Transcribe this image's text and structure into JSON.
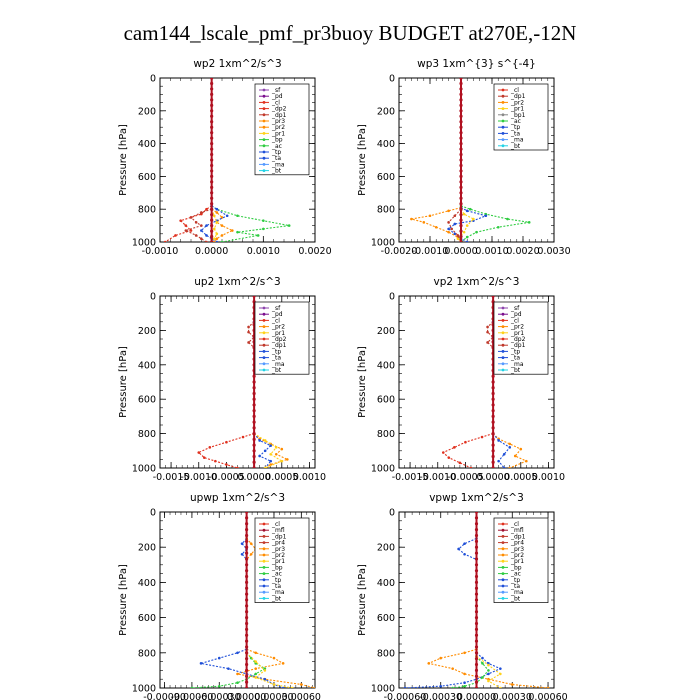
{
  "figure_title": "cam144_lscale_pmf_pr3buoy  BUDGET at270E,-12N",
  "colors": {
    "_sf": "#8e44ad",
    "_pd": "#7b0f8e",
    "_cl": "#e0301e",
    "_dp2": "#e0301e",
    "_dp1": "#c0392b",
    "_pr3": "#ff8c00",
    "_pr2": "#ff8c00",
    "_pr1": "#ffd21a",
    "_bp": "#2ecc40",
    "_ac": "#2ecc40",
    "_tp": "#1f4fd8",
    "_ta": "#1f4fd8",
    "_ma": "#5599ff",
    "_bt": "#22d3e6",
    "_mfl": "#a01030",
    "_pr4": "#c0392b",
    "profile": "#b01020"
  },
  "chart_data": [
    {
      "type": "line",
      "title": "wp2   1xm^2/s^3",
      "ylabel": "Pressure [hPa]",
      "xlim": [
        -0.001,
        0.002
      ],
      "xticks": [
        -0.001,
        0.0,
        0.001,
        0.002
      ],
      "xtick_labels": [
        "-0.0010",
        "0.0000",
        "0.0010",
        "0.0020"
      ],
      "ylim": [
        1000,
        0
      ],
      "yticks": [
        0,
        200,
        400,
        600,
        800,
        1000
      ],
      "ytick_labels": [
        "0",
        "200",
        "400",
        "600",
        "800",
        "1000"
      ],
      "legend": [
        "_sf",
        "_pd",
        "_cl",
        "_dp2",
        "_dp1",
        "_pr3",
        "_pr2",
        "_pr1",
        "_bp",
        "_ac",
        "_tp",
        "_ta",
        "_ma",
        "_bt"
      ],
      "legend_placement": "top-right",
      "series": [
        {
          "name": "_bp",
          "x": [
            0,
            0.0001,
            0.0005,
            0.001,
            0.0015,
            0.001,
            0.0005,
            0.0009,
            0.0002
          ],
          "y": [
            780,
            800,
            840,
            870,
            900,
            920,
            940,
            960,
            1000
          ]
        },
        {
          "name": "_cl",
          "x": [
            0,
            -0.0001,
            -0.0002,
            -0.0004,
            -0.0006,
            -0.0005,
            -0.0004,
            -0.0007,
            -0.0009
          ],
          "y": [
            780,
            800,
            830,
            850,
            870,
            900,
            930,
            960,
            1000
          ]
        },
        {
          "name": "_pr3",
          "x": [
            0,
            0.0001,
            0.0002,
            0.0001,
            0.0002,
            0.0004,
            0.0002,
            0.0001,
            5e-05
          ],
          "y": [
            800,
            820,
            850,
            880,
            900,
            930,
            960,
            980,
            1000
          ]
        },
        {
          "name": "_tp",
          "x": [
            0,
            0.0001,
            0.0003,
            0.0001,
            -0.0001,
            -0.0002,
            -0.0001,
            0,
            0.0001
          ],
          "y": [
            780,
            800,
            840,
            870,
            900,
            930,
            960,
            980,
            1000
          ]
        },
        {
          "name": "_dp1",
          "x": [
            0,
            -0.0002,
            -0.0004,
            -0.0003,
            -0.0002,
            -0.0005,
            -0.0003,
            -0.0002,
            -0.0001
          ],
          "y": [
            800,
            820,
            850,
            880,
            900,
            930,
            960,
            980,
            1000
          ]
        },
        {
          "name": "_pr1",
          "x": [
            0,
            5e-05,
            0.0001,
            5e-05,
            0.0001,
            5e-05,
            0
          ],
          "y": [
            800,
            840,
            880,
            920,
            950,
            980,
            1000
          ]
        }
      ]
    },
    {
      "type": "line",
      "title": "wp3   1xm^{3} s^{-4}",
      "ylabel": "Pressure [hPa]",
      "xlim": [
        -0.002,
        0.003
      ],
      "xticks": [
        -0.002,
        -0.001,
        0.0,
        0.001,
        0.002,
        0.003
      ],
      "xtick_labels": [
        "-0.0020",
        "-0.0010",
        "0.0000",
        "0.0010",
        "0.0020",
        "0.0030"
      ],
      "ylim": [
        1000,
        0
      ],
      "yticks": [
        0,
        200,
        400,
        600,
        800,
        1000
      ],
      "ytick_labels": [
        "0",
        "200",
        "400",
        "600",
        "800",
        "1000"
      ],
      "legend": [
        "_cl",
        "_dp1",
        "_pr2",
        "_pr1",
        "_bp1",
        "_ac",
        "_tp",
        "_ta",
        "_ma",
        "_bt"
      ],
      "legend_placement": "top-right",
      "series": [
        {
          "name": "_ac",
          "x": [
            0,
            0.0003,
            0.0008,
            0.0015,
            0.0022,
            0.0012,
            0.0005,
            0.0002,
            0
          ],
          "y": [
            780,
            800,
            830,
            860,
            880,
            910,
            940,
            970,
            1000
          ]
        },
        {
          "name": "_pr2",
          "x": [
            0,
            -0.0004,
            -0.001,
            -0.0016,
            -0.0012,
            -0.0008,
            -0.0004,
            -0.0001,
            0
          ],
          "y": [
            790,
            810,
            840,
            860,
            880,
            910,
            940,
            970,
            1000
          ]
        },
        {
          "name": "_tp",
          "x": [
            0,
            0.0002,
            0.0008,
            0.0004,
            -0.0002,
            -0.0004,
            -0.0002,
            0,
            0.0002
          ],
          "y": [
            790,
            810,
            840,
            870,
            890,
            920,
            950,
            980,
            1000
          ]
        },
        {
          "name": "_pr1",
          "x": [
            0,
            0.0001,
            0.0004,
            0.0002,
            0.0001,
            -0.0001,
            0
          ],
          "y": [
            800,
            830,
            860,
            900,
            940,
            980,
            1000
          ]
        },
        {
          "name": "_dp1",
          "x": [
            0,
            -0.0002,
            -0.0004,
            -0.0003,
            -0.0001,
            0
          ],
          "y": [
            800,
            840,
            880,
            920,
            960,
            1000
          ]
        }
      ]
    },
    {
      "type": "line",
      "title": "up2   1xm^2/s^3",
      "ylabel": "Pressure [hPa]",
      "xlim": [
        -0.0017,
        0.0011
      ],
      "xticks": [
        -0.0015,
        -0.001,
        -0.0005,
        0.0,
        0.0005,
        0.001
      ],
      "xtick_labels": [
        "-0.0015",
        "-0.0010",
        "-0.0005",
        "0.0000",
        "0.0005",
        "0.0010"
      ],
      "ylim": [
        1000,
        0
      ],
      "yticks": [
        0,
        200,
        400,
        600,
        800,
        1000
      ],
      "ytick_labels": [
        "0",
        "200",
        "400",
        "600",
        "800",
        "1000"
      ],
      "legend": [
        "_sf",
        "_pd",
        "_cl",
        "_pr2",
        "_pr1",
        "_dp2",
        "_dp1",
        "_tp",
        "_ta",
        "_ma",
        "_bt"
      ],
      "legend_placement": "top-right",
      "series": [
        {
          "name": "_dp2",
          "x": [
            0,
            -0.0002,
            -0.0005,
            -0.0008,
            -0.001,
            -0.0009,
            -0.0007,
            -0.0005,
            -0.0003
          ],
          "y": [
            800,
            820,
            850,
            880,
            910,
            940,
            960,
            980,
            1000
          ]
        },
        {
          "name": "_pr2",
          "x": [
            0,
            0.0001,
            0.0003,
            0.0005,
            0.0004,
            0.0006,
            0.0003,
            0.0002
          ],
          "y": [
            800,
            830,
            860,
            890,
            920,
            950,
            980,
            1000
          ]
        },
        {
          "name": "_tp",
          "x": [
            0,
            0.0001,
            0.0003,
            0.0002,
            0.0001,
            0.0003,
            0.0002
          ],
          "y": [
            800,
            840,
            870,
            900,
            930,
            960,
            1000
          ]
        },
        {
          "name": "_dp1",
          "x": [
            0,
            -0.0001,
            -0.0001,
            0,
            -0.0001,
            0
          ],
          "y": [
            150,
            180,
            210,
            240,
            270,
            300
          ]
        },
        {
          "name": "_ta",
          "x": [
            0,
            0.0001,
            0.0001,
            0,
            0.0001,
            0
          ],
          "y": [
            150,
            180,
            210,
            240,
            270,
            300
          ]
        },
        {
          "name": "_pr1",
          "x": [
            0,
            0.0002,
            0.0004,
            0.0003,
            0.0005,
            0.0002
          ],
          "y": [
            800,
            840,
            880,
            920,
            960,
            1000
          ]
        }
      ]
    },
    {
      "type": "line",
      "title": "vp2   1xm^2/s^3",
      "ylabel": "Pressure [hPa]",
      "xlim": [
        -0.0017,
        0.0011
      ],
      "xticks": [
        -0.0015,
        -0.001,
        -0.0005,
        0.0,
        0.0005,
        0.001
      ],
      "xtick_labels": [
        "-0.0015",
        "-0.0010",
        "-0.0005",
        "0.0000",
        "0.0005",
        "0.0010"
      ],
      "ylim": [
        1000,
        0
      ],
      "yticks": [
        0,
        200,
        400,
        600,
        800,
        1000
      ],
      "ytick_labels": [
        "0",
        "200",
        "400",
        "600",
        "800",
        "1000"
      ],
      "legend": [
        "_sf",
        "_pd",
        "_cl",
        "_pr2",
        "_pr1",
        "_dp2",
        "_dp1",
        "_tp",
        "_ta",
        "_ma",
        "_bt"
      ],
      "legend_placement": "top-right",
      "series": [
        {
          "name": "_dp2",
          "x": [
            0,
            -0.0002,
            -0.0005,
            -0.0007,
            -0.0009,
            -0.0008,
            -0.0006,
            -0.0004
          ],
          "y": [
            800,
            820,
            850,
            880,
            910,
            940,
            970,
            1000
          ]
        },
        {
          "name": "_pr2",
          "x": [
            0,
            0.0001,
            0.0003,
            0.0005,
            0.0004,
            0.0006,
            0.0003
          ],
          "y": [
            800,
            830,
            860,
            890,
            930,
            960,
            1000
          ]
        },
        {
          "name": "_tp",
          "x": [
            0,
            0.0001,
            0.0003,
            0.0002,
            0.0001,
            0.0002
          ],
          "y": [
            800,
            840,
            880,
            920,
            960,
            1000
          ]
        },
        {
          "name": "_dp1",
          "x": [
            0,
            -0.0001,
            -0.0001,
            0,
            -0.0001,
            0
          ],
          "y": [
            150,
            180,
            210,
            240,
            270,
            300
          ]
        },
        {
          "name": "_ta",
          "x": [
            0,
            0.0001,
            0.0001,
            0,
            0.0001,
            0
          ],
          "y": [
            150,
            180,
            210,
            240,
            270,
            300
          ]
        }
      ]
    },
    {
      "type": "line",
      "title": "upwp   1xm^2/s^3",
      "ylabel": "Pressure [hPa]",
      "xlim": [
        -0.00095,
        0.00075
      ],
      "xticks": [
        -0.0009,
        -0.0006,
        -0.0003,
        0.0,
        0.0003,
        0.0006
      ],
      "xtick_labels": [
        "-0.00090",
        "-0.00060",
        "-0.00030",
        "0.00000",
        "0.00030",
        "0.00060"
      ],
      "ylim": [
        1000,
        0
      ],
      "yticks": [
        0,
        200,
        400,
        600,
        800,
        1000
      ],
      "ytick_labels": [
        "0",
        "200",
        "400",
        "600",
        "800",
        "1000"
      ],
      "legend": [
        "_cl",
        "_mfl",
        "_dp1",
        "_pr4",
        "_pr3",
        "_pr2",
        "_pr1",
        "_bp",
        "_ac",
        "_tp",
        "_ta",
        "_ma",
        "_bt"
      ],
      "legend_placement": "top-right",
      "series": [
        {
          "name": "_pr2",
          "x": [
            0,
            0.0001,
            0.0003,
            0.0004,
            0.0001,
            -0.0001,
            0.0002,
            0.0006,
            0.00075
          ],
          "y": [
            780,
            800,
            830,
            860,
            890,
            920,
            950,
            980,
            1000
          ]
        },
        {
          "name": "_tp",
          "x": [
            0,
            -0.0001,
            -0.0003,
            -0.0005,
            -0.0002,
            0,
            0.0002,
            0.0003,
            0.0004
          ],
          "y": [
            780,
            800,
            830,
            860,
            890,
            920,
            950,
            980,
            1000
          ]
        },
        {
          "name": "_ac",
          "x": [
            0,
            5e-05,
            0.0001,
            0.0002,
            0.0001,
            0,
            -0.0001,
            -0.0003,
            -0.0006
          ],
          "y": [
            800,
            830,
            860,
            890,
            920,
            950,
            970,
            990,
            1000
          ]
        },
        {
          "name": "_pr1",
          "x": [
            0,
            0.0001,
            0.0002,
            0.0001,
            0.0003,
            0.0005
          ],
          "y": [
            800,
            850,
            900,
            940,
            980,
            1000
          ]
        },
        {
          "name": "_ta",
          "x": [
            0,
            -5e-05,
            0,
            -5e-05,
            0
          ],
          "y": [
            150,
            180,
            210,
            240,
            270
          ]
        },
        {
          "name": "_pr3",
          "x": [
            0,
            5e-05,
            0.0001,
            5e-05,
            0
          ],
          "y": [
            150,
            180,
            210,
            240,
            270
          ]
        }
      ]
    },
    {
      "type": "line",
      "title": "vpwp   1xm^2/s^3",
      "ylabel": "Pressure [hPa]",
      "xlim": [
        -0.00065,
        0.00065
      ],
      "xticks": [
        -0.0006,
        -0.0003,
        0.0,
        0.0003,
        0.0006
      ],
      "xtick_labels": [
        "-0.00060",
        "-0.00030",
        "0.00000",
        "0.00030",
        "0.00060"
      ],
      "ylim": [
        1000,
        0
      ],
      "yticks": [
        0,
        200,
        400,
        600,
        800,
        1000
      ],
      "ytick_labels": [
        "0",
        "200",
        "400",
        "600",
        "800",
        "1000"
      ],
      "legend": [
        "_cl",
        "_mfl",
        "_dp1",
        "_pr4",
        "_pr3",
        "_pr2",
        "_pr1",
        "_bp",
        "_ac",
        "_tp",
        "_ta",
        "_ma",
        "_bt"
      ],
      "legend_placement": "top-right",
      "series": [
        {
          "name": "_pr2",
          "x": [
            0,
            -0.0001,
            -0.0003,
            -0.0004,
            -0.0002,
            -0.0001,
            0.0001,
            0.0003,
            0.0006
          ],
          "y": [
            780,
            800,
            830,
            860,
            890,
            920,
            950,
            980,
            1000
          ]
        },
        {
          "name": "_tp",
          "x": [
            0,
            5e-05,
            0.0001,
            0.0002,
            0.0001,
            0,
            -0.0001,
            -0.0003,
            -0.0006
          ],
          "y": [
            800,
            830,
            860,
            890,
            920,
            950,
            970,
            990,
            1000
          ]
        },
        {
          "name": "_ac",
          "x": [
            0,
            5e-05,
            0.0001,
            5e-05,
            0,
            -0.0001,
            -0.0002
          ],
          "y": [
            820,
            860,
            900,
            940,
            970,
            990,
            1000
          ]
        },
        {
          "name": "_ta",
          "x": [
            0,
            -0.0001,
            -0.00015,
            -0.0001,
            0
          ],
          "y": [
            150,
            180,
            210,
            240,
            270
          ]
        },
        {
          "name": "_pr1",
          "x": [
            0,
            0.0001,
            0.0002,
            0.0001,
            0.0002
          ],
          "y": [
            820,
            870,
            920,
            960,
            1000
          ]
        }
      ]
    }
  ]
}
